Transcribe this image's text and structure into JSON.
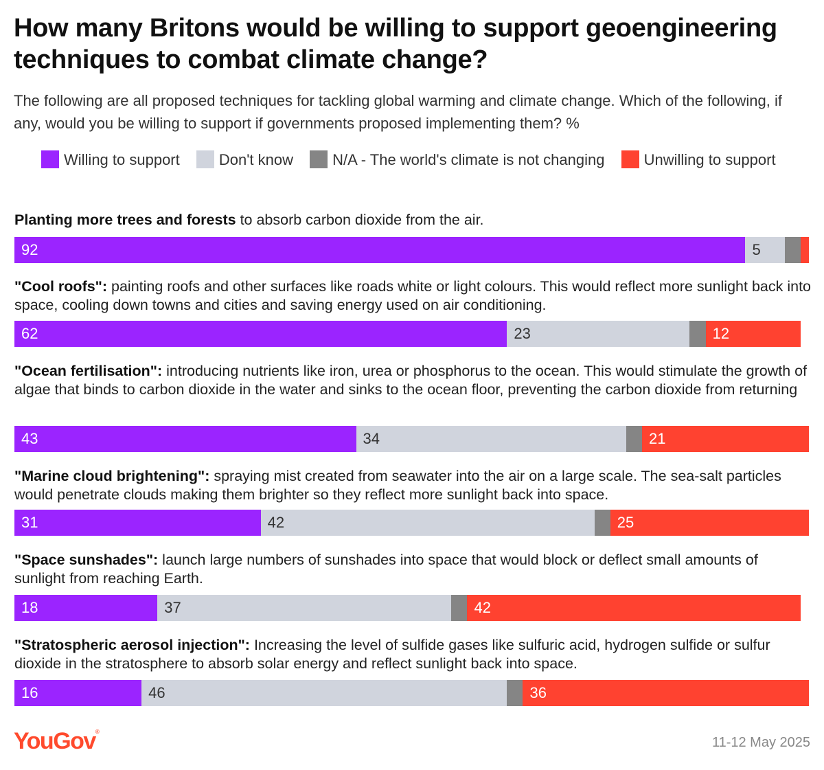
{
  "title": "How many Britons would be willing to support geoengineering techniques to combat climate change?",
  "subtitle": "The following are all proposed techniques for tackling global warming and climate change. Which of the following, if any, would you be willing to support if governments proposed implementing them? %",
  "legend": [
    {
      "label": "Willing to support",
      "color": "#9b24ff"
    },
    {
      "label": "Don't know",
      "color": "#d0d4dd"
    },
    {
      "label": "N/A - The world's climate is not changing",
      "color": "#858585"
    },
    {
      "label": "Unwilling to support",
      "color": "#ff4230"
    }
  ],
  "chart_data": {
    "type": "bar",
    "orientation": "horizontal-stacked",
    "title": "How many Britons would be willing to support geoengineering techniques to combat climate change?",
    "unit": "%",
    "series_names": [
      "Willing to support",
      "Don't know",
      "N/A - The world's climate is not changing",
      "Unwilling to support"
    ],
    "rows": [
      {
        "bold": "Planting more trees and forests",
        "rest": " to absorb carbon dioxide from the air.",
        "values": [
          92,
          5,
          2,
          1
        ],
        "labels": [
          "92",
          "5",
          "",
          ""
        ]
      },
      {
        "bold": "\"Cool roofs\":",
        "rest": " painting roofs and other surfaces like roads white or light colours. This would reflect more sunlight back into space, cooling down towns and cities and saving energy used on air conditioning.",
        "values": [
          62,
          23,
          2,
          12
        ],
        "labels": [
          "62",
          "23",
          "",
          "12"
        ]
      },
      {
        "bold": "\"Ocean fertilisation\":",
        "rest": " introducing nutrients like iron, urea or phosphorus to the ocean. This would stimulate the growth of algae that binds to carbon dioxide in the water and sinks to the ocean floor, preventing the carbon dioxide from returning",
        "values": [
          43,
          34,
          2,
          21
        ],
        "labels": [
          "43",
          "34",
          "",
          "21"
        ]
      },
      {
        "bold": "\"Marine cloud brightening\":",
        "rest": " spraying mist created from seawater into the air on a large scale. The sea-salt particles would penetrate clouds making them brighter so they reflect more sunlight back into space.",
        "values": [
          31,
          42,
          2,
          25
        ],
        "labels": [
          "31",
          "42",
          "",
          "25"
        ]
      },
      {
        "bold": "\"Space sunshades\":",
        "rest": " launch large numbers of sunshades into space that would block or deflect small amounts of sunlight from reaching Earth.",
        "values": [
          18,
          37,
          2,
          42
        ],
        "labels": [
          "18",
          "37",
          "",
          "42"
        ]
      },
      {
        "bold": "\"Stratospheric aerosol injection\":",
        "rest": " Increasing the level of sulfide gases like sulfuric acid, hydrogen sulfide or sulfur dioxide in the stratosphere to absorb solar energy and reflect sunlight back into space.",
        "values": [
          16,
          46,
          2,
          36
        ],
        "labels": [
          "16",
          "46",
          "",
          "36"
        ]
      }
    ],
    "xlim": [
      0,
      100
    ]
  },
  "footer": {
    "brand": "YouGov",
    "date": "11-12 May 2025"
  }
}
